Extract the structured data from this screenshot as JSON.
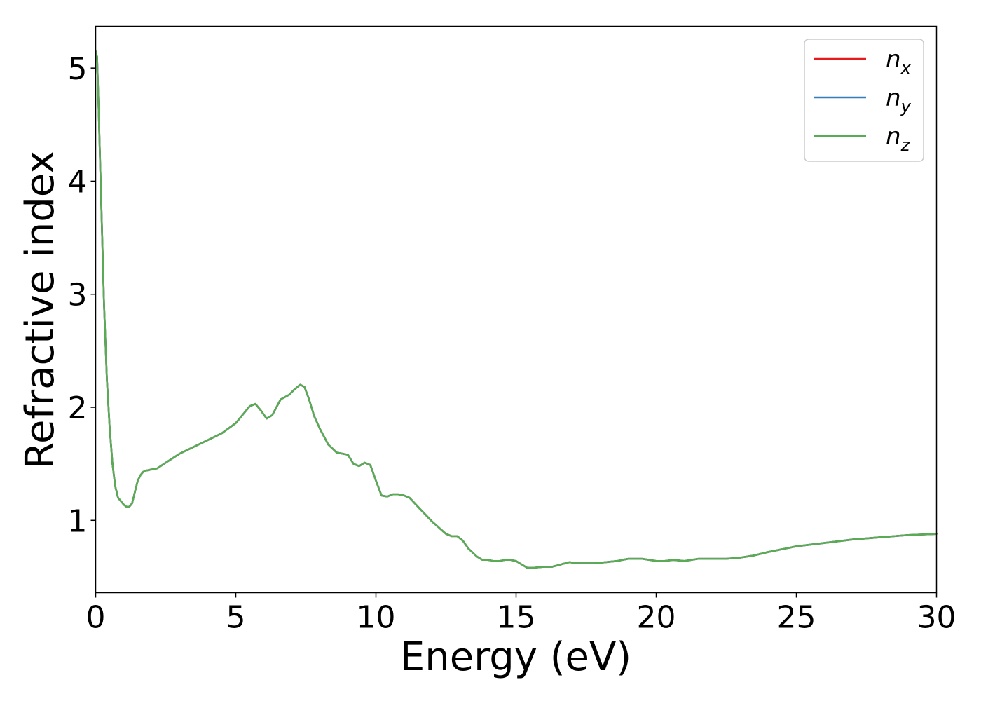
{
  "chart_data": {
    "type": "line",
    "xlabel": "Energy (eV)",
    "ylabel": "Refractive index",
    "xlim": [
      0,
      30
    ],
    "ylim": [
      0.36,
      5.37
    ],
    "xticks": [
      0,
      5,
      10,
      15,
      20,
      25,
      30
    ],
    "yticks": [
      1,
      2,
      3,
      4,
      5
    ],
    "grid": false,
    "legend_position": "top-right",
    "series": [
      {
        "name": "n_x",
        "label_base": "n",
        "label_sub": "x",
        "color": "#e41a1c",
        "x": [
          0.0,
          0.05,
          0.1,
          0.2,
          0.3,
          0.4,
          0.5,
          0.6,
          0.7,
          0.8,
          0.9,
          1.0,
          1.1,
          1.2,
          1.3,
          1.4,
          1.5,
          1.6,
          1.7,
          1.8,
          2.0,
          2.2,
          2.5,
          3.0,
          3.5,
          4.0,
          4.5,
          5.0,
          5.3,
          5.5,
          5.7,
          5.9,
          6.1,
          6.3,
          6.6,
          6.9,
          7.1,
          7.3,
          7.45,
          7.6,
          7.8,
          8.0,
          8.3,
          8.6,
          8.8,
          9.0,
          9.2,
          9.4,
          9.6,
          9.8,
          10.0,
          10.2,
          10.4,
          10.6,
          10.8,
          11.0,
          11.2,
          11.5,
          12.0,
          12.5,
          12.7,
          12.9,
          13.1,
          13.3,
          13.6,
          13.8,
          14.0,
          14.2,
          14.4,
          14.6,
          14.8,
          15.0,
          15.2,
          15.4,
          15.6,
          16.0,
          16.3,
          16.6,
          16.9,
          17.2,
          17.5,
          17.8,
          18.2,
          18.6,
          19.0,
          19.5,
          20.0,
          20.3,
          20.6,
          21.0,
          21.5,
          22.0,
          22.5,
          23.0,
          23.5,
          24.0,
          25.0,
          26.0,
          27.0,
          28.0,
          29.0,
          30.0
        ],
        "y": [
          5.15,
          5.1,
          4.7,
          3.8,
          2.9,
          2.25,
          1.82,
          1.5,
          1.3,
          1.2,
          1.17,
          1.14,
          1.12,
          1.12,
          1.15,
          1.25,
          1.35,
          1.4,
          1.43,
          1.44,
          1.45,
          1.46,
          1.51,
          1.59,
          1.65,
          1.71,
          1.77,
          1.86,
          1.95,
          2.01,
          2.03,
          1.97,
          1.9,
          1.93,
          2.07,
          2.11,
          2.16,
          2.2,
          2.18,
          2.08,
          1.92,
          1.81,
          1.67,
          1.6,
          1.59,
          1.58,
          1.5,
          1.48,
          1.51,
          1.49,
          1.35,
          1.22,
          1.21,
          1.23,
          1.23,
          1.22,
          1.2,
          1.12,
          0.99,
          0.88,
          0.86,
          0.86,
          0.82,
          0.75,
          0.68,
          0.65,
          0.65,
          0.64,
          0.64,
          0.65,
          0.65,
          0.64,
          0.61,
          0.58,
          0.58,
          0.59,
          0.59,
          0.61,
          0.63,
          0.62,
          0.62,
          0.62,
          0.63,
          0.64,
          0.66,
          0.66,
          0.64,
          0.64,
          0.65,
          0.64,
          0.66,
          0.66,
          0.66,
          0.67,
          0.69,
          0.72,
          0.77,
          0.8,
          0.83,
          0.85,
          0.87,
          0.88
        ]
      },
      {
        "name": "n_y",
        "label_base": "n",
        "label_sub": "y",
        "color": "#377eb8",
        "x": [
          0.0,
          0.05,
          0.1,
          0.2,
          0.3,
          0.4,
          0.5,
          0.6,
          0.7,
          0.8,
          0.9,
          1.0,
          1.1,
          1.2,
          1.3,
          1.4,
          1.5,
          1.6,
          1.7,
          1.8,
          2.0,
          2.2,
          2.5,
          3.0,
          3.5,
          4.0,
          4.5,
          5.0,
          5.3,
          5.5,
          5.7,
          5.9,
          6.1,
          6.3,
          6.6,
          6.9,
          7.1,
          7.3,
          7.45,
          7.6,
          7.8,
          8.0,
          8.3,
          8.6,
          8.8,
          9.0,
          9.2,
          9.4,
          9.6,
          9.8,
          10.0,
          10.2,
          10.4,
          10.6,
          10.8,
          11.0,
          11.2,
          11.5,
          12.0,
          12.5,
          12.7,
          12.9,
          13.1,
          13.3,
          13.6,
          13.8,
          14.0,
          14.2,
          14.4,
          14.6,
          14.8,
          15.0,
          15.2,
          15.4,
          15.6,
          16.0,
          16.3,
          16.6,
          16.9,
          17.2,
          17.5,
          17.8,
          18.2,
          18.6,
          19.0,
          19.5,
          20.0,
          20.3,
          20.6,
          21.0,
          21.5,
          22.0,
          22.5,
          23.0,
          23.5,
          24.0,
          25.0,
          26.0,
          27.0,
          28.0,
          29.0,
          30.0
        ],
        "y": [
          5.15,
          5.1,
          4.7,
          3.8,
          2.9,
          2.25,
          1.82,
          1.5,
          1.3,
          1.2,
          1.17,
          1.14,
          1.12,
          1.12,
          1.15,
          1.25,
          1.35,
          1.4,
          1.43,
          1.44,
          1.45,
          1.46,
          1.51,
          1.59,
          1.65,
          1.71,
          1.77,
          1.86,
          1.95,
          2.01,
          2.03,
          1.97,
          1.9,
          1.93,
          2.07,
          2.11,
          2.16,
          2.2,
          2.18,
          2.08,
          1.92,
          1.81,
          1.67,
          1.6,
          1.59,
          1.58,
          1.5,
          1.48,
          1.51,
          1.49,
          1.35,
          1.22,
          1.21,
          1.23,
          1.23,
          1.22,
          1.2,
          1.12,
          0.99,
          0.88,
          0.86,
          0.86,
          0.82,
          0.75,
          0.68,
          0.65,
          0.65,
          0.64,
          0.64,
          0.65,
          0.65,
          0.64,
          0.61,
          0.58,
          0.58,
          0.59,
          0.59,
          0.61,
          0.63,
          0.62,
          0.62,
          0.62,
          0.63,
          0.64,
          0.66,
          0.66,
          0.64,
          0.64,
          0.65,
          0.64,
          0.66,
          0.66,
          0.66,
          0.67,
          0.69,
          0.72,
          0.77,
          0.8,
          0.83,
          0.85,
          0.87,
          0.88
        ]
      },
      {
        "name": "n_z",
        "label_base": "n",
        "label_sub": "z",
        "color": "#5aac54",
        "x": [
          0.0,
          0.05,
          0.1,
          0.2,
          0.3,
          0.4,
          0.5,
          0.6,
          0.7,
          0.8,
          0.9,
          1.0,
          1.1,
          1.2,
          1.3,
          1.4,
          1.5,
          1.6,
          1.7,
          1.8,
          2.0,
          2.2,
          2.5,
          3.0,
          3.5,
          4.0,
          4.5,
          5.0,
          5.3,
          5.5,
          5.7,
          5.9,
          6.1,
          6.3,
          6.6,
          6.9,
          7.1,
          7.3,
          7.45,
          7.6,
          7.8,
          8.0,
          8.3,
          8.6,
          8.8,
          9.0,
          9.2,
          9.4,
          9.6,
          9.8,
          10.0,
          10.2,
          10.4,
          10.6,
          10.8,
          11.0,
          11.2,
          11.5,
          12.0,
          12.5,
          12.7,
          12.9,
          13.1,
          13.3,
          13.6,
          13.8,
          14.0,
          14.2,
          14.4,
          14.6,
          14.8,
          15.0,
          15.2,
          15.4,
          15.6,
          16.0,
          16.3,
          16.6,
          16.9,
          17.2,
          17.5,
          17.8,
          18.2,
          18.6,
          19.0,
          19.5,
          20.0,
          20.3,
          20.6,
          21.0,
          21.5,
          22.0,
          22.5,
          23.0,
          23.5,
          24.0,
          25.0,
          26.0,
          27.0,
          28.0,
          29.0,
          30.0
        ],
        "y": [
          5.15,
          5.1,
          4.7,
          3.8,
          2.9,
          2.25,
          1.82,
          1.5,
          1.3,
          1.2,
          1.17,
          1.14,
          1.12,
          1.12,
          1.15,
          1.25,
          1.35,
          1.4,
          1.43,
          1.44,
          1.45,
          1.46,
          1.51,
          1.59,
          1.65,
          1.71,
          1.77,
          1.86,
          1.95,
          2.01,
          2.03,
          1.97,
          1.9,
          1.93,
          2.07,
          2.11,
          2.16,
          2.2,
          2.18,
          2.08,
          1.92,
          1.81,
          1.67,
          1.6,
          1.59,
          1.58,
          1.5,
          1.48,
          1.51,
          1.49,
          1.35,
          1.22,
          1.21,
          1.23,
          1.23,
          1.22,
          1.2,
          1.12,
          0.99,
          0.88,
          0.86,
          0.86,
          0.82,
          0.75,
          0.68,
          0.65,
          0.65,
          0.64,
          0.64,
          0.65,
          0.65,
          0.64,
          0.61,
          0.58,
          0.58,
          0.59,
          0.59,
          0.61,
          0.63,
          0.62,
          0.62,
          0.62,
          0.63,
          0.64,
          0.66,
          0.66,
          0.64,
          0.64,
          0.65,
          0.64,
          0.66,
          0.66,
          0.66,
          0.67,
          0.69,
          0.72,
          0.77,
          0.8,
          0.83,
          0.85,
          0.87,
          0.88
        ]
      }
    ]
  }
}
